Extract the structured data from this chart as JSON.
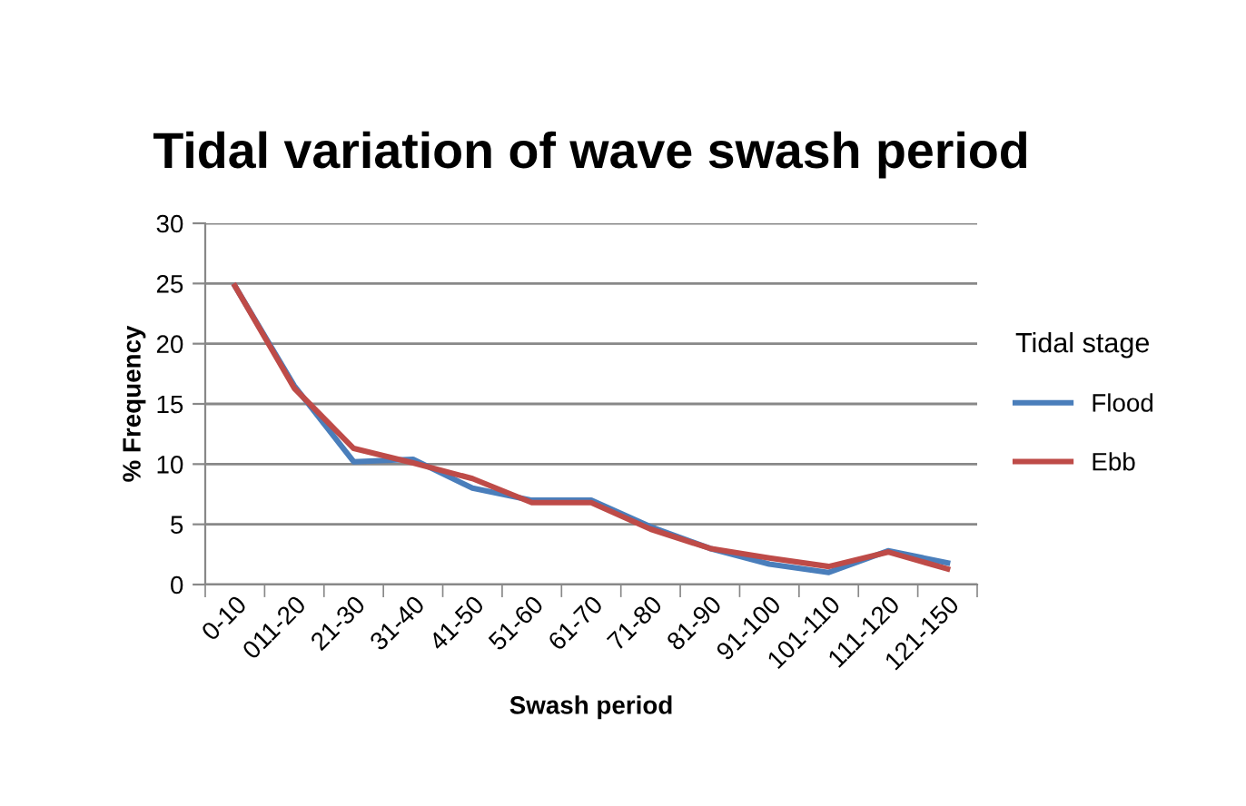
{
  "chart_data": {
    "type": "line",
    "title": "Tidal variation of wave swash period",
    "xlabel": "Swash period",
    "ylabel": "% Frequency",
    "legend_title": "Tidal stage",
    "categories": [
      "0-10",
      "011-20",
      "21-30",
      "31-40",
      "41-50",
      "51-60",
      "61-70",
      "71-80",
      "81-90",
      "91-100",
      "101-110",
      "111-120",
      "121-150"
    ],
    "series": [
      {
        "name": "Flood",
        "color": "#4a7ebb",
        "values": [
          24.8,
          16.5,
          10.2,
          10.4,
          8.0,
          7.0,
          7.0,
          4.8,
          3.0,
          1.7,
          1.0,
          2.8,
          1.8
        ]
      },
      {
        "name": "Ebb",
        "color": "#be4b48",
        "values": [
          24.8,
          16.3,
          11.3,
          10.1,
          8.8,
          6.8,
          6.8,
          4.6,
          3.0,
          2.2,
          1.5,
          2.7,
          1.3
        ]
      }
    ],
    "ylim": [
      0,
      30
    ],
    "yticks": [
      0,
      5,
      10,
      15,
      20,
      25,
      30
    ],
    "grid": "y",
    "legend": "right",
    "marker": "none",
    "line_style": "solid"
  }
}
